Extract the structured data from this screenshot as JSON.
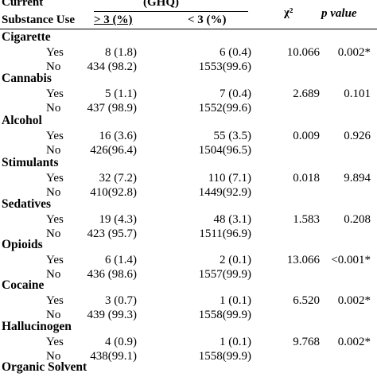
{
  "header": {
    "col0_line1": "Current",
    "col0_line2": "Substance Use",
    "group": "(GHQ)",
    "col1": "> 3 (%)",
    "col2": "< 3 (%)",
    "chi": "χ²",
    "p": "p value"
  },
  "categories": [
    {
      "name": "Cigarette",
      "rows": [
        {
          "label": "Yes",
          "ge3": "8 (1.8)",
          "lt3": "6 (0.4)",
          "chi": "10.066",
          "p": "0.002*"
        },
        {
          "label": "No",
          "ge3": "434 (98.2)",
          "lt3": "1553(99.6)",
          "chi": "",
          "p": ""
        }
      ]
    },
    {
      "name": "Cannabis",
      "rows": [
        {
          "label": "Yes",
          "ge3": "5 (1.1)",
          "lt3": "7 (0.4)",
          "chi": "2.689",
          "p": "0.101"
        },
        {
          "label": "No",
          "ge3": "437 (98.9)",
          "lt3": "1552(99.6)",
          "chi": "",
          "p": ""
        }
      ]
    },
    {
      "name": "Alcohol",
      "rows": [
        {
          "label": "Yes",
          "ge3": "16 (3.6)",
          "lt3": "55 (3.5)",
          "chi": "0.009",
          "p": "0.926"
        },
        {
          "label": "No",
          "ge3": "426(96.4)",
          "lt3": "1504(96.5)",
          "chi": "",
          "p": ""
        }
      ]
    },
    {
      "name": "Stimulants",
      "rows": [
        {
          "label": "Yes",
          "ge3": "32 (7.2)",
          "lt3": "110 (7.1)",
          "chi": "0.018",
          "p": "9.894"
        },
        {
          "label": "No",
          "ge3": "410(92.8)",
          "lt3": "1449(92.9)",
          "chi": "",
          "p": ""
        }
      ]
    },
    {
      "name": "Sedatives",
      "rows": [
        {
          "label": "Yes",
          "ge3": "19 (4.3)",
          "lt3": "48 (3.1)",
          "chi": "1.583",
          "p": "0.208"
        },
        {
          "label": "No",
          "ge3": "423 (95.7)",
          "lt3": "1511(96.9)",
          "chi": "",
          "p": ""
        }
      ]
    },
    {
      "name": "Opioids",
      "rows": [
        {
          "label": "Yes",
          "ge3": "6 (1.4)",
          "lt3": "2 (0.1)",
          "chi": "13.066",
          "p": "<0.001*"
        },
        {
          "label": "No",
          "ge3": "436 (98.6)",
          "lt3": "1557(99.9)",
          "chi": "",
          "p": ""
        }
      ]
    },
    {
      "name": "Cocaine",
      "rows": [
        {
          "label": "Yes",
          "ge3": "3 (0.7)",
          "lt3": "1 (0.1)",
          "chi": "6.520",
          "p": "0.002*"
        },
        {
          "label": "No",
          "ge3": "439 (99.3)",
          "lt3": "1558(99.9)",
          "chi": "",
          "p": ""
        }
      ]
    },
    {
      "name": "Hallucinogen",
      "rows": [
        {
          "label": "Yes",
          "ge3": "4 (0.9)",
          "lt3": "1 (0.1)",
          "chi": "9.768",
          "p": "0.002*"
        },
        {
          "label": "No",
          "ge3": "438(99.1)",
          "lt3": "1558(99.9)",
          "chi": "",
          "p": ""
        }
      ]
    },
    {
      "name": "Organic Solvent",
      "rows": []
    }
  ]
}
